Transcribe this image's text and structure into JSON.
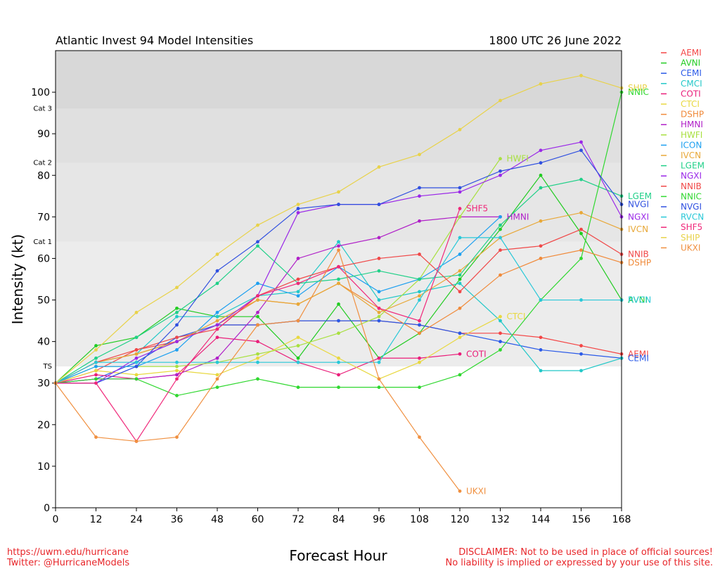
{
  "footer": {
    "url": "https://uwm.edu/hurricane",
    "twitter": "Twitter: @HurricaneModels",
    "disclaimer_1": "DISCLAIMER: Not to be used in place of official sources!",
    "disclaimer_2": "No liability is implied or expressed by your use of this site."
  },
  "chart_data": {
    "type": "line",
    "title": "Atlantic Invest 94 Model Intensities",
    "subtitle": "1800 UTC 26 June 2022",
    "xlabel": "Forecast Hour",
    "ylabel": "Intensity (kt)",
    "xlim": [
      0,
      168
    ],
    "ylim": [
      0,
      110
    ],
    "xticks": [
      0,
      12,
      24,
      36,
      48,
      60,
      72,
      84,
      96,
      108,
      120,
      132,
      144,
      156,
      168
    ],
    "yticks": [
      0,
      10,
      20,
      30,
      40,
      50,
      60,
      70,
      80,
      90,
      100
    ],
    "categories_bands": [
      {
        "label": "TS",
        "from": 34,
        "to": 64,
        "color": "#ececec"
      },
      {
        "label": "Cat 1",
        "from": 64,
        "to": 83,
        "color": "#e6e6e6"
      },
      {
        "label": "Cat 2",
        "from": 83,
        "to": 96,
        "color": "#e0e0e0"
      },
      {
        "label": "Cat 3",
        "from": 96,
        "to": 110,
        "color": "#d8d8d8"
      }
    ],
    "category_labels": [
      {
        "label": "TS",
        "value": 34
      },
      {
        "label": "Cat 1",
        "value": 64
      },
      {
        "label": "Cat 2",
        "value": 83
      },
      {
        "label": "Cat 3",
        "value": 96
      }
    ],
    "series": [
      {
        "name": "AEMI",
        "color": "#f44545",
        "end_label": "AEMI",
        "points": [
          [
            0,
            30
          ],
          [
            12,
            33
          ],
          [
            24,
            38
          ],
          [
            36,
            40
          ],
          [
            48,
            44
          ],
          [
            60,
            44
          ],
          [
            72,
            45
          ],
          [
            84,
            45
          ],
          [
            96,
            45
          ],
          [
            108,
            44
          ],
          [
            120,
            42
          ],
          [
            132,
            42
          ],
          [
            144,
            41
          ],
          [
            156,
            39
          ],
          [
            168,
            37
          ]
        ]
      },
      {
        "name": "AVNI",
        "color": "#22cc22",
        "end_label": "AVNI",
        "points": [
          [
            0,
            30
          ],
          [
            12,
            39
          ],
          [
            24,
            41
          ],
          [
            36,
            48
          ],
          [
            48,
            46
          ],
          [
            60,
            46
          ],
          [
            72,
            36
          ],
          [
            84,
            49
          ],
          [
            96,
            36
          ],
          [
            108,
            42
          ],
          [
            120,
            55
          ],
          [
            132,
            67
          ],
          [
            144,
            80
          ],
          [
            156,
            66
          ],
          [
            168,
            50
          ]
        ]
      },
      {
        "name": "CEMI",
        "color": "#2a5ae8",
        "end_label": "CEMI",
        "points": [
          [
            0,
            30
          ],
          [
            12,
            31
          ],
          [
            24,
            35
          ],
          [
            36,
            41
          ],
          [
            48,
            44
          ],
          [
            60,
            44
          ],
          [
            72,
            45
          ],
          [
            84,
            45
          ],
          [
            96,
            45
          ],
          [
            108,
            44
          ],
          [
            120,
            42
          ],
          [
            132,
            40
          ],
          [
            144,
            38
          ],
          [
            156,
            37
          ],
          [
            168,
            36
          ]
        ]
      },
      {
        "name": "CMCI",
        "color": "#22c8c8",
        "end_label": "",
        "points": [
          [
            0,
            30
          ],
          [
            12,
            35
          ],
          [
            24,
            37
          ],
          [
            36,
            46
          ],
          [
            48,
            46
          ],
          [
            60,
            51
          ],
          [
            72,
            52
          ],
          [
            84,
            64
          ],
          [
            96,
            50
          ],
          [
            108,
            52
          ],
          [
            120,
            54
          ],
          [
            132,
            45
          ],
          [
            144,
            33
          ],
          [
            156,
            33
          ],
          [
            168,
            36
          ]
        ]
      },
      {
        "name": "COTI",
        "color": "#ea1e7a",
        "end_label": "COTI",
        "points": [
          [
            0,
            30
          ],
          [
            12,
            32
          ],
          [
            24,
            31
          ],
          [
            36,
            32
          ],
          [
            48,
            41
          ],
          [
            60,
            40
          ],
          [
            72,
            35
          ],
          [
            84,
            32
          ],
          [
            96,
            36
          ],
          [
            108,
            36
          ],
          [
            120,
            37
          ]
        ]
      },
      {
        "name": "CTCI",
        "color": "#e8d840",
        "end_label": "CTCI",
        "points": [
          [
            0,
            30
          ],
          [
            12,
            33
          ],
          [
            24,
            32
          ],
          [
            36,
            33
          ],
          [
            48,
            32
          ],
          [
            60,
            36
          ],
          [
            72,
            41
          ],
          [
            84,
            36
          ],
          [
            96,
            31
          ],
          [
            108,
            35
          ],
          [
            120,
            41
          ],
          [
            132,
            46
          ]
        ]
      },
      {
        "name": "DSHP",
        "color": "#f08a3a",
        "end_label": "DSHP",
        "points": [
          [
            0,
            30
          ],
          [
            12,
            35
          ],
          [
            24,
            37
          ],
          [
            36,
            40
          ],
          [
            48,
            44
          ],
          [
            60,
            50
          ],
          [
            72,
            49
          ],
          [
            84,
            54
          ],
          [
            96,
            48
          ],
          [
            108,
            42
          ],
          [
            120,
            48
          ],
          [
            132,
            56
          ],
          [
            144,
            60
          ],
          [
            156,
            62
          ],
          [
            168,
            59
          ]
        ]
      },
      {
        "name": "HMNI",
        "color": "#b020c8",
        "end_label": "HMNI",
        "points": [
          [
            0,
            30
          ],
          [
            12,
            31
          ],
          [
            24,
            31
          ],
          [
            36,
            32
          ],
          [
            48,
            36
          ],
          [
            60,
            47
          ],
          [
            72,
            60
          ],
          [
            84,
            63
          ],
          [
            96,
            65
          ],
          [
            108,
            69
          ],
          [
            120,
            70
          ],
          [
            132,
            70
          ]
        ]
      },
      {
        "name": "HWFI",
        "color": "#a8e040",
        "end_label": "HWFI",
        "points": [
          [
            0,
            30
          ],
          [
            12,
            34
          ],
          [
            24,
            34
          ],
          [
            36,
            34
          ],
          [
            48,
            35
          ],
          [
            60,
            37
          ],
          [
            72,
            39
          ],
          [
            84,
            42
          ],
          [
            96,
            46
          ],
          [
            108,
            55
          ],
          [
            120,
            70
          ],
          [
            132,
            84
          ]
        ]
      },
      {
        "name": "ICON",
        "color": "#1ea0f0",
        "end_label": "",
        "points": [
          [
            0,
            30
          ],
          [
            12,
            34
          ],
          [
            24,
            34
          ],
          [
            36,
            38
          ],
          [
            48,
            47
          ],
          [
            60,
            54
          ],
          [
            72,
            51
          ],
          [
            84,
            58
          ],
          [
            96,
            52
          ],
          [
            108,
            55
          ],
          [
            120,
            61
          ],
          [
            132,
            70
          ]
        ]
      },
      {
        "name": "IVCN",
        "color": "#e8a838",
        "end_label": "IVCN",
        "points": [
          [
            0,
            30
          ],
          [
            12,
            35
          ],
          [
            24,
            37
          ],
          [
            36,
            40
          ],
          [
            48,
            45
          ],
          [
            60,
            50
          ],
          [
            72,
            49
          ],
          [
            84,
            54
          ],
          [
            96,
            47
          ],
          [
            108,
            51
          ],
          [
            120,
            57
          ],
          [
            132,
            65
          ],
          [
            144,
            69
          ],
          [
            156,
            71
          ],
          [
            168,
            67
          ]
        ]
      },
      {
        "name": "LGEM",
        "color": "#20d088",
        "end_label": "LGEM",
        "points": [
          [
            0,
            30
          ],
          [
            12,
            36
          ],
          [
            24,
            41
          ],
          [
            36,
            47
          ],
          [
            48,
            54
          ],
          [
            60,
            63
          ],
          [
            72,
            54
          ],
          [
            84,
            55
          ],
          [
            96,
            57
          ],
          [
            108,
            55
          ],
          [
            120,
            56
          ],
          [
            132,
            68
          ],
          [
            144,
            77
          ],
          [
            156,
            79
          ],
          [
            168,
            75
          ]
        ]
      },
      {
        "name": "NGXI",
        "color": "#9a28e8",
        "end_label": "NGXI",
        "points": [
          [
            0,
            30
          ],
          [
            12,
            30
          ],
          [
            24,
            36
          ],
          [
            36,
            40
          ],
          [
            48,
            44
          ],
          [
            60,
            51
          ],
          [
            72,
            71
          ],
          [
            84,
            73
          ],
          [
            96,
            73
          ],
          [
            108,
            75
          ],
          [
            120,
            76
          ],
          [
            132,
            80
          ],
          [
            144,
            86
          ],
          [
            156,
            88
          ],
          [
            168,
            70
          ]
        ]
      },
      {
        "name": "NNIB",
        "color": "#f04848",
        "end_label": "NNIB",
        "points": [
          [
            0,
            30
          ],
          [
            12,
            35
          ],
          [
            24,
            38
          ],
          [
            36,
            41
          ],
          [
            48,
            43
          ],
          [
            60,
            51
          ],
          [
            72,
            55
          ],
          [
            84,
            58
          ],
          [
            96,
            60
          ],
          [
            108,
            61
          ],
          [
            120,
            52
          ],
          [
            132,
            62
          ],
          [
            144,
            63
          ],
          [
            156,
            67
          ],
          [
            168,
            61
          ]
        ]
      },
      {
        "name": "NNIC",
        "color": "#30d830",
        "end_label": "NNIC",
        "points": [
          [
            0,
            30
          ],
          [
            12,
            31
          ],
          [
            24,
            31
          ],
          [
            36,
            27
          ],
          [
            48,
            29
          ],
          [
            60,
            31
          ],
          [
            72,
            29
          ],
          [
            84,
            29
          ],
          [
            96,
            29
          ],
          [
            108,
            29
          ],
          [
            120,
            32
          ],
          [
            132,
            38
          ],
          [
            144,
            50
          ],
          [
            156,
            60
          ],
          [
            168,
            100
          ]
        ]
      },
      {
        "name": "NVGI",
        "color": "#3050e0",
        "end_label": "NVGI",
        "points": [
          [
            0,
            30
          ],
          [
            12,
            30
          ],
          [
            24,
            34
          ],
          [
            36,
            44
          ],
          [
            48,
            57
          ],
          [
            60,
            64
          ],
          [
            72,
            72
          ],
          [
            84,
            73
          ],
          [
            96,
            73
          ],
          [
            108,
            77
          ],
          [
            120,
            77
          ],
          [
            132,
            81
          ],
          [
            144,
            83
          ],
          [
            156,
            86
          ],
          [
            168,
            73
          ]
        ]
      },
      {
        "name": "RVCN",
        "color": "#28c8d8",
        "end_label": "RVCN",
        "points": [
          [
            0,
            30
          ],
          [
            12,
            35
          ],
          [
            24,
            35
          ],
          [
            36,
            35
          ],
          [
            48,
            35
          ],
          [
            60,
            35
          ],
          [
            72,
            35
          ],
          [
            84,
            35
          ],
          [
            96,
            35
          ],
          [
            108,
            50
          ],
          [
            120,
            65
          ],
          [
            132,
            65
          ],
          [
            144,
            50
          ],
          [
            156,
            50
          ],
          [
            168,
            50
          ]
        ]
      },
      {
        "name": "SHF5",
        "color": "#f0287a",
        "end_label": "SHF5",
        "points": [
          [
            0,
            30
          ],
          [
            12,
            30
          ],
          [
            24,
            16
          ],
          [
            36,
            31
          ],
          [
            48,
            43
          ],
          [
            60,
            51
          ],
          [
            72,
            54
          ],
          [
            84,
            58
          ],
          [
            96,
            48
          ],
          [
            108,
            45
          ],
          [
            120,
            72
          ]
        ]
      },
      {
        "name": "SHIP",
        "color": "#e8d24a",
        "end_label": "SHIP",
        "points": [
          [
            0,
            30
          ],
          [
            12,
            38
          ],
          [
            24,
            47
          ],
          [
            36,
            53
          ],
          [
            48,
            61
          ],
          [
            60,
            68
          ],
          [
            72,
            73
          ],
          [
            84,
            76
          ],
          [
            96,
            82
          ],
          [
            108,
            85
          ],
          [
            120,
            91
          ],
          [
            132,
            98
          ],
          [
            144,
            102
          ],
          [
            156,
            104
          ],
          [
            168,
            101
          ]
        ]
      },
      {
        "name": "UKXI",
        "color": "#f09040",
        "end_label": "UKXI",
        "points": [
          [
            0,
            30
          ],
          [
            12,
            17
          ],
          [
            24,
            16
          ],
          [
            36,
            17
          ],
          [
            48,
            31
          ],
          [
            60,
            44
          ],
          [
            72,
            45
          ],
          [
            84,
            62
          ],
          [
            96,
            31
          ],
          [
            108,
            17
          ],
          [
            120,
            4
          ]
        ]
      }
    ]
  }
}
